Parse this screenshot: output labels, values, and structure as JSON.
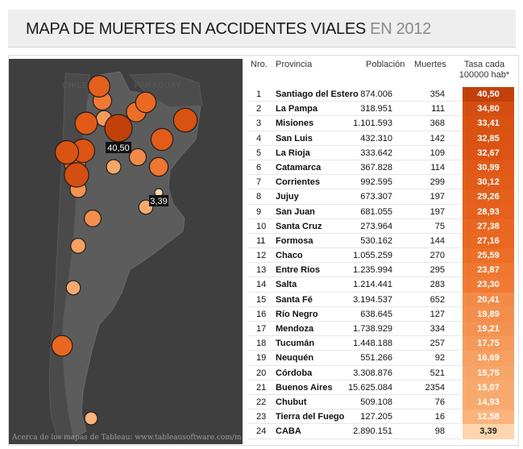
{
  "title": {
    "main": "MAPA DE MUERTES EN ACCIDENTES VIALES",
    "year": "EN 2012"
  },
  "map": {
    "country_labels": [
      "CHILE",
      "PARAGUAY"
    ],
    "marker_labels": [
      "40,50",
      "3,39"
    ],
    "credit": "Acerca de los mapas de Tableau: www.tableausoftware.com/m"
  },
  "colors": {
    "dark": "#c0410a",
    "mid": "#e8611a",
    "light": "#f8b47c",
    "lightest": "#fcd3aa"
  },
  "table": {
    "headers": {
      "nro": "Nro.",
      "provincia": "Provincia",
      "poblacion": "Población",
      "muertes": "Muertes",
      "tasa": "Tasa cada 100000 hab*"
    }
  },
  "chart_data": {
    "type": "table",
    "title": "MAPA DE MUERTES EN ACCIDENTES VIALES EN 2012",
    "columns": [
      "Nro.",
      "Provincia",
      "Población",
      "Muertes",
      "Tasa cada 100000 hab*"
    ],
    "rows": [
      {
        "nro": "1",
        "provincia": "Santiago del Estero",
        "poblacion": "874.006",
        "muertes": "354",
        "tasa": "40,50",
        "value": 40.5
      },
      {
        "nro": "2",
        "provincia": "La Pampa",
        "poblacion": "318.951",
        "muertes": "111",
        "tasa": "34,80",
        "value": 34.8
      },
      {
        "nro": "3",
        "provincia": "Misiones",
        "poblacion": "1.101.593",
        "muertes": "368",
        "tasa": "33,41",
        "value": 33.41
      },
      {
        "nro": "4",
        "provincia": "San Luis",
        "poblacion": "432.310",
        "muertes": "142",
        "tasa": "32,85",
        "value": 32.85
      },
      {
        "nro": "5",
        "provincia": "La Rioja",
        "poblacion": "333.642",
        "muertes": "109",
        "tasa": "32,67",
        "value": 32.67
      },
      {
        "nro": "6",
        "provincia": "Catamarca",
        "poblacion": "367.828",
        "muertes": "114",
        "tasa": "30,99",
        "value": 30.99
      },
      {
        "nro": "7",
        "provincia": "Corrientes",
        "poblacion": "992.595",
        "muertes": "299",
        "tasa": "30,12",
        "value": 30.12
      },
      {
        "nro": "8",
        "provincia": "Jujuy",
        "poblacion": "673.307",
        "muertes": "197",
        "tasa": "29,26",
        "value": 29.26
      },
      {
        "nro": "9",
        "provincia": "San Juan",
        "poblacion": "681.055",
        "muertes": "197",
        "tasa": "28,93",
        "value": 28.93
      },
      {
        "nro": "10",
        "provincia": "Santa Cruz",
        "poblacion": "273.964",
        "muertes": "75",
        "tasa": "27,38",
        "value": 27.38
      },
      {
        "nro": "11",
        "provincia": "Formosa",
        "poblacion": "530.162",
        "muertes": "144",
        "tasa": "27,16",
        "value": 27.16
      },
      {
        "nro": "12",
        "provincia": "Chaco",
        "poblacion": "1.055.259",
        "muertes": "270",
        "tasa": "25,59",
        "value": 25.59
      },
      {
        "nro": "13",
        "provincia": "Entre Ríos",
        "poblacion": "1.235.994",
        "muertes": "295",
        "tasa": "23,87",
        "value": 23.87
      },
      {
        "nro": "14",
        "provincia": "Salta",
        "poblacion": "1.214.441",
        "muertes": "283",
        "tasa": "23,30",
        "value": 23.3
      },
      {
        "nro": "15",
        "provincia": "Santa Fé",
        "poblacion": "3.194.537",
        "muertes": "652",
        "tasa": "20,41",
        "value": 20.41
      },
      {
        "nro": "16",
        "provincia": "Río Negro",
        "poblacion": "638.645",
        "muertes": "127",
        "tasa": "19,89",
        "value": 19.89
      },
      {
        "nro": "17",
        "provincia": "Mendoza",
        "poblacion": "1.738.929",
        "muertes": "334",
        "tasa": "19,21",
        "value": 19.21
      },
      {
        "nro": "18",
        "provincia": "Tucumán",
        "poblacion": "1.448.188",
        "muertes": "257",
        "tasa": "17,75",
        "value": 17.75
      },
      {
        "nro": "19",
        "provincia": "Neuquén",
        "poblacion": "551.266",
        "muertes": "92",
        "tasa": "16,69",
        "value": 16.69
      },
      {
        "nro": "20",
        "provincia": "Córdoba",
        "poblacion": "3.308.876",
        "muertes": "521",
        "tasa": "15,75",
        "value": 15.75
      },
      {
        "nro": "21",
        "provincia": "Buenos Aires",
        "poblacion": "15.625.084",
        "muertes": "2354",
        "tasa": "15,07",
        "value": 15.07
      },
      {
        "nro": "22",
        "provincia": "Chubut",
        "poblacion": "509.108",
        "muertes": "76",
        "tasa": "14,93",
        "value": 14.93
      },
      {
        "nro": "23",
        "provincia": "Tierra del Fuego",
        "poblacion": "127.205",
        "muertes": "16",
        "tasa": "12,58",
        "value": 12.58
      },
      {
        "nro": "24",
        "provincia": "CABA",
        "poblacion": "2.890.151",
        "muertes": "98",
        "tasa": "3,39",
        "value": 3.39
      }
    ]
  }
}
